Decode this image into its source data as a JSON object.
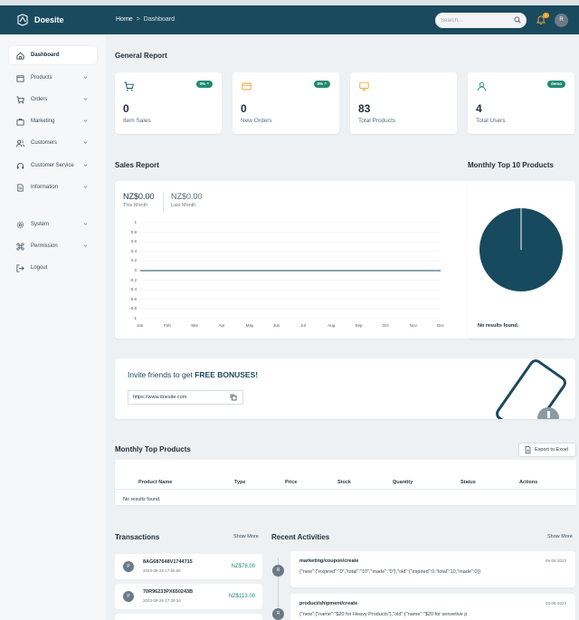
{
  "app": {
    "name": "Doesite"
  },
  "breadcrumb": {
    "home": "Home",
    "separator": ">",
    "current": "Dashboard"
  },
  "search": {
    "placeholder": "Search..."
  },
  "notifications": {
    "count": "1"
  },
  "user": {
    "initial": "R"
  },
  "colors": {
    "header": "#1a4a5e",
    "accent": "#1f8a70",
    "icon_orange": "#e8a33a",
    "pie": "#174a5e"
  },
  "sidebar": {
    "items": [
      {
        "label": "Dashboard",
        "icon": "home-icon",
        "active": true
      },
      {
        "label": "Products",
        "icon": "box-icon"
      },
      {
        "label": "Orders",
        "icon": "cart-icon"
      },
      {
        "label": "Marketing",
        "icon": "briefcase-icon"
      },
      {
        "label": "Customers",
        "icon": "users-icon"
      },
      {
        "label": "Customer Service",
        "icon": "headset-icon"
      },
      {
        "label": "Information",
        "icon": "document-icon"
      },
      {
        "label": "System",
        "icon": "gear-icon"
      },
      {
        "label": "Permission",
        "icon": "command-icon"
      },
      {
        "label": "Logout",
        "icon": "logout-icon"
      }
    ]
  },
  "general_report": {
    "title": "General Report",
    "cards": [
      {
        "value": "0",
        "label": "Item Sales",
        "badge": "0% ^",
        "icon": "cart-icon"
      },
      {
        "value": "0",
        "label": "New Orders",
        "badge": "0% ^",
        "icon": "card-icon"
      },
      {
        "value": "83",
        "label": "Total Products",
        "badge": "",
        "icon": "monitor-icon"
      },
      {
        "value": "4",
        "label": "Total Users",
        "badge": "demo",
        "icon": "user-icon"
      }
    ]
  },
  "sales_report": {
    "title": "Sales Report",
    "this_month_value": "NZ$0.00",
    "this_month_label": "This Month",
    "last_month_value": "NZ$0.00",
    "last_month_label": "Last Month"
  },
  "monthly_top10": {
    "title": "Monthly Top 10 Products",
    "empty": "No results found."
  },
  "invite": {
    "text_prefix": "Invite friends to get ",
    "text_bold": "FREE BONUSES!",
    "link": "https://www.doesite.com"
  },
  "top_products": {
    "title": "Monthly Top Products",
    "export_label": "Export to Excel",
    "columns": [
      "Product Name",
      "Type",
      "Price",
      "Stock",
      "Quantity",
      "Status",
      "Actions"
    ],
    "empty": "No results found."
  },
  "transactions": {
    "title": "Transactions",
    "show_more": "Show More",
    "items": [
      {
        "initial": "P",
        "id": "8AG687648V1744715",
        "date": "2023-08-25 17:55:56",
        "amount": "NZ$78.00"
      },
      {
        "initial": "P",
        "id": "70R96233PX650243B",
        "date": "2023-08-25 17:39:34",
        "amount": "NZ$113.00"
      }
    ]
  },
  "activities": {
    "title": "Recent Activities",
    "show_more": "Show More",
    "items": [
      {
        "initial": "R",
        "title": "marketing/coupon/create",
        "date": "06-06-2023",
        "body": "{\"new\":{\"expired\":\"0\",\"total\":\"10\",\"made\":\"0\"},\"old\":{\"expired\":0,\"total\":10,\"made\":0}}"
      },
      {
        "initial": "R",
        "title": "product/shipment/create",
        "date": "03-06-2023",
        "body": "{\"new\":{\"name\":\"$20 for Heavy Products\"},\"old\":{\"name\":\"$20 for sensetive p"
      }
    ]
  },
  "chart_data": [
    {
      "type": "line",
      "title": "",
      "x": [
        "Jan",
        "Feb",
        "Mar",
        "Apr",
        "May",
        "Jun",
        "Jul",
        "Aug",
        "Sep",
        "Oct",
        "Nov",
        "Dec"
      ],
      "series": [
        {
          "values": [
            0,
            0,
            0,
            0,
            0,
            0,
            0,
            0,
            0,
            0,
            0,
            0
          ]
        }
      ],
      "yticks": [
        "1",
        "0.8",
        "0.6",
        "0.4",
        "0.2",
        "0",
        "-0.2",
        "-0.4",
        "-0.6",
        "-0.8",
        "-1"
      ],
      "ylim": [
        -1,
        1
      ],
      "grid": true
    },
    {
      "type": "pie",
      "title": "Monthly Top 10 Products",
      "values": [
        100
      ],
      "empty_label": "No results found."
    }
  ]
}
